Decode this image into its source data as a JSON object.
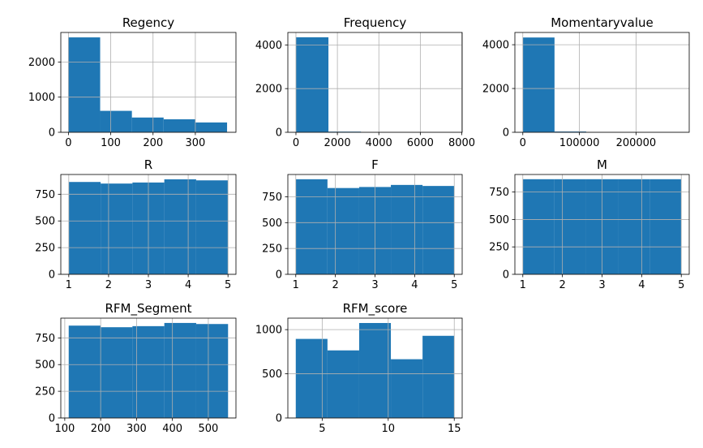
{
  "chart_data": [
    {
      "type": "bar",
      "title": "Regency",
      "bin_edges": [
        0,
        75,
        150,
        225,
        300,
        375
      ],
      "values": [
        2700,
        610,
        420,
        370,
        280
      ],
      "xlim": [
        -18,
        396
      ],
      "ylim": [
        0,
        2840
      ],
      "xticks": [
        0,
        100,
        200,
        300
      ],
      "yticks": [
        0,
        1000,
        2000
      ],
      "grid": true,
      "color": "#1f77b4"
    },
    {
      "type": "bar",
      "title": "Frequency",
      "bin_edges": [
        0,
        1568,
        3136,
        4704,
        6272,
        7840
      ],
      "values": [
        4350,
        30,
        5,
        2,
        1
      ],
      "xlim": [
        -390,
        8020
      ],
      "ylim": [
        0,
        4570
      ],
      "xticks": [
        0,
        2000,
        4000,
        6000,
        8000
      ],
      "yticks": [
        0,
        2000,
        4000
      ],
      "grid": true,
      "color": "#1f77b4"
    },
    {
      "type": "bar",
      "title": "Momentaryvalue",
      "bin_edges": [
        0,
        56000,
        112000,
        168000,
        224000,
        280000
      ],
      "values": [
        4330,
        35,
        3,
        1,
        1
      ],
      "xlim": [
        -14000,
        294000
      ],
      "ylim": [
        0,
        4560
      ],
      "xticks": [
        0,
        100000,
        200000
      ],
      "yticks": [
        0,
        2000,
        4000
      ],
      "grid": true,
      "color": "#1f77b4"
    },
    {
      "type": "bar",
      "title": "R",
      "bin_edges": [
        1,
        1.8,
        2.6,
        3.4,
        4.2,
        5
      ],
      "values": [
        865,
        850,
        860,
        890,
        880
      ],
      "xlim": [
        0.8,
        5.2
      ],
      "ylim": [
        0,
        935
      ],
      "xticks": [
        1,
        2,
        3,
        4,
        5
      ],
      "yticks": [
        0,
        250,
        500,
        750
      ],
      "grid": true,
      "color": "#1f77b4"
    },
    {
      "type": "bar",
      "title": "F",
      "bin_edges": [
        1,
        1.8,
        2.6,
        3.4,
        4.2,
        5
      ],
      "values": [
        920,
        835,
        845,
        865,
        855
      ],
      "xlim": [
        0.8,
        5.2
      ],
      "ylim": [
        0,
        966
      ],
      "xticks": [
        1,
        2,
        3,
        4,
        5
      ],
      "yticks": [
        0,
        250,
        500,
        750
      ],
      "grid": true,
      "color": "#1f77b4"
    },
    {
      "type": "bar",
      "title": "M",
      "bin_edges": [
        1,
        1.8,
        2.6,
        3.4,
        4.2,
        5
      ],
      "values": [
        867,
        867,
        867,
        867,
        867
      ],
      "xlim": [
        0.8,
        5.2
      ],
      "ylim": [
        0,
        910
      ],
      "xticks": [
        1,
        2,
        3,
        4,
        5
      ],
      "yticks": [
        0,
        250,
        500,
        750
      ],
      "grid": true,
      "color": "#1f77b4"
    },
    {
      "type": "bar",
      "title": "RFM_Segment",
      "bin_edges": [
        111,
        199.8,
        288.6,
        377.4,
        466.2,
        555
      ],
      "values": [
        865,
        850,
        860,
        890,
        880
      ],
      "xlim": [
        89,
        577
      ],
      "ylim": [
        0,
        935
      ],
      "xticks": [
        100,
        200,
        300,
        400,
        500
      ],
      "yticks": [
        0,
        250,
        500,
        750
      ],
      "grid": true,
      "color": "#1f77b4"
    },
    {
      "type": "bar",
      "title": "RFM_score",
      "bin_edges": [
        3,
        5.4,
        7.8,
        10.2,
        12.6,
        15
      ],
      "values": [
        895,
        765,
        1075,
        665,
        930
      ],
      "xlim": [
        2.4,
        15.6
      ],
      "ylim": [
        0,
        1130
      ],
      "xticks": [
        5,
        10,
        15
      ],
      "yticks": [
        0,
        500,
        1000
      ],
      "grid": true,
      "color": "#1f77b4"
    }
  ]
}
